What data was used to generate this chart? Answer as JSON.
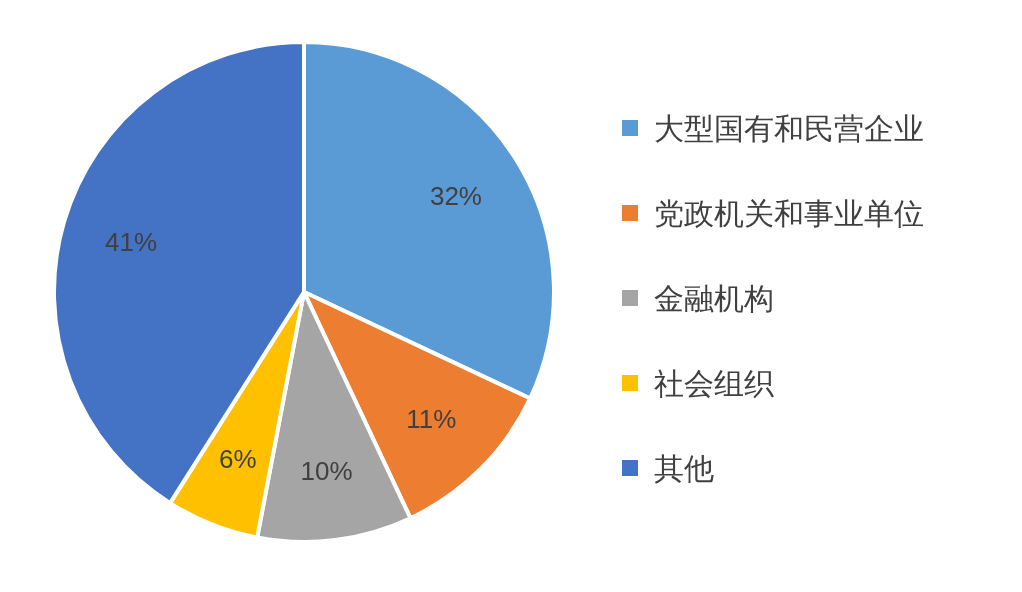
{
  "chart_data": {
    "type": "pie",
    "categories": [
      "大型国有和民营企业",
      "党政机关和事业单位",
      "金融机构",
      "社会组织",
      "其他"
    ],
    "values": [
      32,
      11,
      10,
      6,
      41
    ],
    "colors": [
      "#5b9bd5",
      "#ed7d31",
      "#a5a5a5",
      "#ffc000",
      "#4472c4"
    ],
    "value_labels": [
      "32%",
      "11%",
      "10%",
      "6%",
      "41%"
    ],
    "legend": "right"
  }
}
